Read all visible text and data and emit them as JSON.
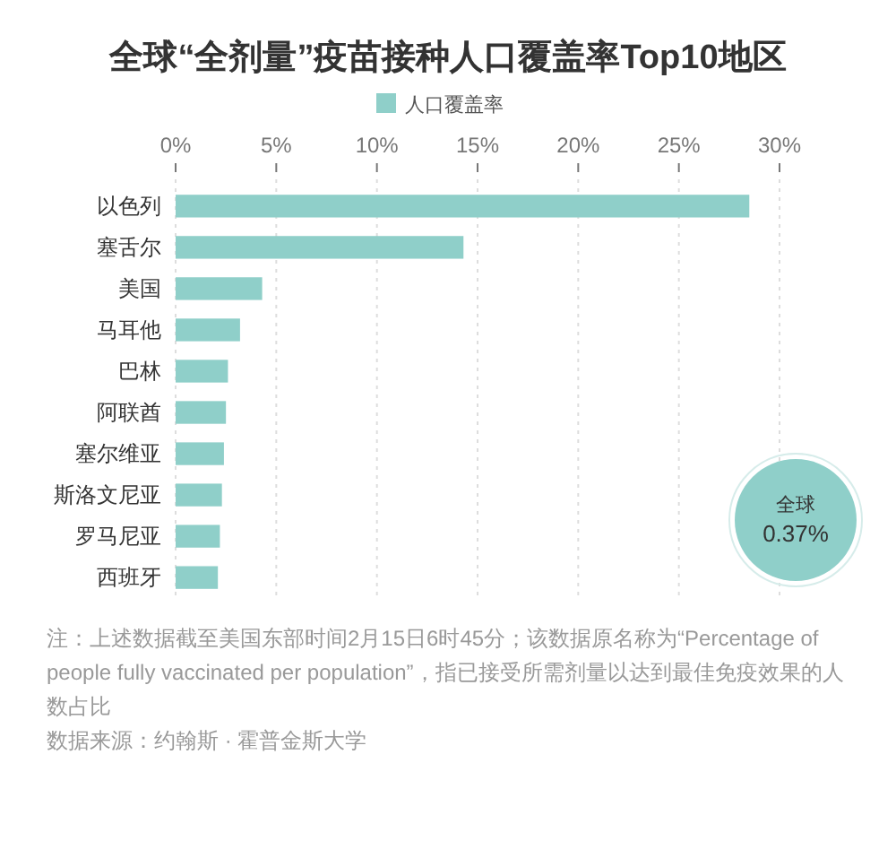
{
  "chart_data": {
    "type": "bar",
    "orientation": "horizontal",
    "title": "全球“全剂量”疫苗接种人口覆盖率Top10地区",
    "categories": [
      "以色列",
      "塞舌尔",
      "美国",
      "马耳他",
      "巴林",
      "阿联酋",
      "塞尔维亚",
      "斯洛文尼亚",
      "罗马尼亚",
      "西班牙"
    ],
    "series": [
      {
        "name": "人口覆盖率",
        "color": "#8fcfc9",
        "values": [
          28.5,
          14.3,
          4.3,
          3.2,
          2.6,
          2.5,
          2.4,
          2.3,
          2.2,
          2.1
        ]
      }
    ],
    "xlim": [
      0,
      30
    ],
    "xticks": [
      {
        "value": 0,
        "label": "0%"
      },
      {
        "value": 5,
        "label": "5%"
      },
      {
        "value": 10,
        "label": "10%"
      },
      {
        "value": 15,
        "label": "15%"
      },
      {
        "value": 20,
        "label": "20%"
      },
      {
        "value": 25,
        "label": "25%"
      },
      {
        "value": 30,
        "label": "30%"
      }
    ],
    "grid": "x",
    "legend": "top",
    "annotations": [
      "全球",
      "0.37%",
      "注：上述数据截至美国东部时间2月15日6时45分；该数据原名称为“Percentage of people fully vaccinated per population”，指已接受所需剂量以达到最佳免疫效果的人数占比",
      "数据来源：约翰斯 · 霍普金斯大学"
    ]
  }
}
